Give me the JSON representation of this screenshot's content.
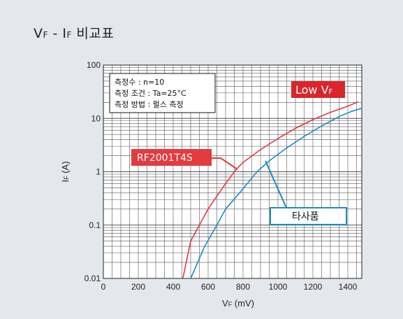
{
  "title": {
    "main_v": "V",
    "sub_f1": "F",
    "dash": " - ",
    "main_i": "I",
    "sub_f2": "F",
    "rest": " 비교표"
  },
  "conditions": [
    "측정수 : n=10",
    "측정 조건 : Ta=25°C",
    "측정 방법 : 펄스 측정"
  ],
  "callouts": {
    "low_vf_main": "Low V",
    "low_vf_sub": "F",
    "rohm_label": "RF2001T4S",
    "competitor_label": "타사품"
  },
  "colors": {
    "rohm": "#e23b40",
    "competitor": "#1a8cc4",
    "low_vf_box": "#d8262b"
  },
  "chart_data": {
    "type": "line",
    "title": "VF - IF 비교표",
    "xlabel_main": "V",
    "xlabel_sub": "F",
    "xlabel_rest": " (mV)",
    "ylabel_main": "I",
    "ylabel_sub": "F",
    "ylabel_rest": " (A)",
    "xlim": [
      0,
      1480
    ],
    "ylim": [
      0.01,
      100
    ],
    "yscale": "log",
    "grid": true,
    "x_ticks": [
      0,
      200,
      400,
      600,
      800,
      1000,
      1200,
      1400
    ],
    "y_ticks": [
      0.01,
      0.1,
      1,
      10,
      100
    ],
    "y_tick_labels": [
      "0.01",
      "0.1",
      "1",
      "10",
      "100"
    ],
    "series": [
      {
        "name": "RF2001T4S",
        "x": [
          455,
          500,
          550,
          600,
          650,
          700,
          760,
          800,
          900,
          1000,
          1100,
          1200,
          1300,
          1400,
          1460
        ],
        "y": [
          0.01,
          0.05,
          0.1,
          0.2,
          0.35,
          0.6,
          1.1,
          1.5,
          2.6,
          4.2,
          6.5,
          9.5,
          13,
          17,
          20.5
        ]
      },
      {
        "name": "타사품",
        "x": [
          500,
          540,
          580,
          650,
          700,
          800,
          880,
          950,
          1050,
          1150,
          1250,
          1350,
          1420,
          1480
        ],
        "y": [
          0.01,
          0.02,
          0.04,
          0.1,
          0.2,
          0.48,
          1.0,
          1.6,
          2.8,
          4.6,
          7.2,
          10.8,
          13.5,
          15.5
        ]
      }
    ]
  }
}
